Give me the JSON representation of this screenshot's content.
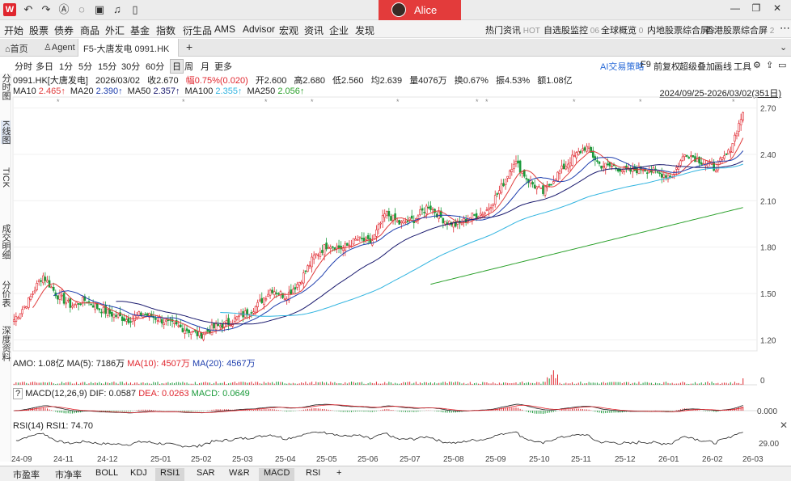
{
  "titlebar": {
    "user_name": "Alice",
    "logo": "W"
  },
  "menu": {
    "left": [
      "开始",
      "股票",
      "债券",
      "商品",
      "外汇",
      "基金",
      "指数",
      "衍生品",
      "AMS",
      "Advisor",
      "宏观",
      "资讯",
      "企业",
      "发现"
    ],
    "right": [
      {
        "label": "热门资讯",
        "tag": "HOT"
      },
      {
        "label": "自选股监控",
        "tag": "06"
      },
      {
        "label": "全球概览",
        "tag": "0"
      },
      {
        "label": "内地股票综合屏",
        "tag": "1"
      },
      {
        "label": "香港股票综合屏",
        "tag": "2"
      }
    ]
  },
  "tabs": {
    "home": "首页",
    "agent": "Agent",
    "doc": "F5-大唐发电 0991.HK",
    "add": "+"
  },
  "periods": [
    "分时",
    "多日",
    "1分",
    "5分",
    "15分",
    "30分",
    "60分",
    "日",
    "周",
    "月",
    "更多"
  ],
  "selected_period": "日",
  "right_tools": [
    "AI交易策略",
    "F9",
    "前复权",
    "超级叠加",
    "画线",
    "工具"
  ],
  "left_views": [
    "分时图",
    "K线图",
    "TICK",
    "成交明细",
    "分价表",
    "深度资料"
  ],
  "quote": {
    "code": "0991.HK[大唐发电]",
    "date": "2026/03/02",
    "close": "收2.670",
    "change": "幅0.75%(0.020)",
    "open": "开2.600",
    "high": "高2.680",
    "low": "低2.560",
    "avg": "均2.639",
    "volume": "量4076万",
    "turnover": "换0.67%",
    "amplitude": "振4.53%",
    "amount": "额1.08亿"
  },
  "ma_legend": [
    {
      "label": "MA10",
      "value": "2.465↑",
      "color": "#e03c3c"
    },
    {
      "label": "MA20",
      "value": "2.390↑",
      "color": "#1f3fae"
    },
    {
      "label": "MA50",
      "value": "2.357↑",
      "color": "#1a1a6e"
    },
    {
      "label": "MA100",
      "value": "2.355↑",
      "color": "#31b4e0"
    },
    {
      "label": "MA250",
      "value": "2.056↑",
      "color": "#2aa02a"
    }
  ],
  "date_range": "2024/09/25-2026/03/02(351日)",
  "price_axis": [
    "2.70",
    "2.40",
    "2.10",
    "1.80",
    "1.50",
    "1.20"
  ],
  "amo": {
    "label": "AMO: 1.08亿",
    "ma5": "MA(5): 7186万",
    "ma10": "MA(10): 4507万",
    "ma20": "MA(20): 4567万",
    "axis": "0"
  },
  "macd": {
    "label": "MACD(12,26,9)",
    "dif": "DIF: 0.0587",
    "dea": "DEA: 0.0263",
    "macd": "MACD: 0.0649",
    "axis": "0.000"
  },
  "rsi": {
    "label": "RSI(14) RSI1: 74.70",
    "axis": "29.00"
  },
  "x_axis": [
    "24-09",
    "24-11",
    "24-12",
    "25-01",
    "25-02",
    "25-03",
    "25-04",
    "25-05",
    "25-06",
    "25-07",
    "25-08",
    "25-09",
    "25-10",
    "25-11",
    "25-12",
    "26-01",
    "26-02",
    "26-03"
  ],
  "bottom_tabs": [
    "市盈率",
    "市净率",
    "BOLL",
    "KDJ",
    "RSI1",
    "SAR",
    "W&R",
    "MACD",
    "RSI",
    "+"
  ],
  "bottom_selected": [
    "RSI1",
    "MACD"
  ],
  "colors": {
    "up": "#e0262e",
    "down": "#1a9a3a",
    "accent": "#e33b3b"
  },
  "chart_data": {
    "type": "candlestick",
    "price_ylim": [
      1.15,
      2.75
    ],
    "months": [
      "24-09",
      "24-11",
      "24-12",
      "25-01",
      "25-02",
      "25-03",
      "25-04",
      "25-05",
      "25-06",
      "25-07",
      "25-08",
      "25-09",
      "25-10",
      "25-11",
      "25-12",
      "26-01",
      "26-02",
      "26-03"
    ],
    "price_path": [
      1.33,
      1.45,
      1.62,
      1.49,
      1.42,
      1.46,
      1.4,
      1.36,
      1.33,
      1.37,
      1.34,
      1.3,
      1.27,
      1.23,
      1.28,
      1.31,
      1.36,
      1.42,
      1.53,
      1.48,
      1.58,
      1.74,
      1.82,
      1.79,
      1.85,
      1.83,
      2.02,
      1.95,
      1.98,
      2.07,
      1.98,
      1.94,
      2.0,
      2.03,
      2.17,
      2.36,
      2.23,
      2.15,
      2.27,
      2.37,
      2.45,
      2.33,
      2.32,
      2.29,
      2.31,
      2.28,
      2.26,
      2.41,
      2.36,
      2.31,
      2.41,
      2.67
    ],
    "ma10_end": 2.465,
    "ma20_end": 2.39,
    "ma50_end": 2.357,
    "ma100_end": 2.355,
    "ma250_end": 2.056
  }
}
